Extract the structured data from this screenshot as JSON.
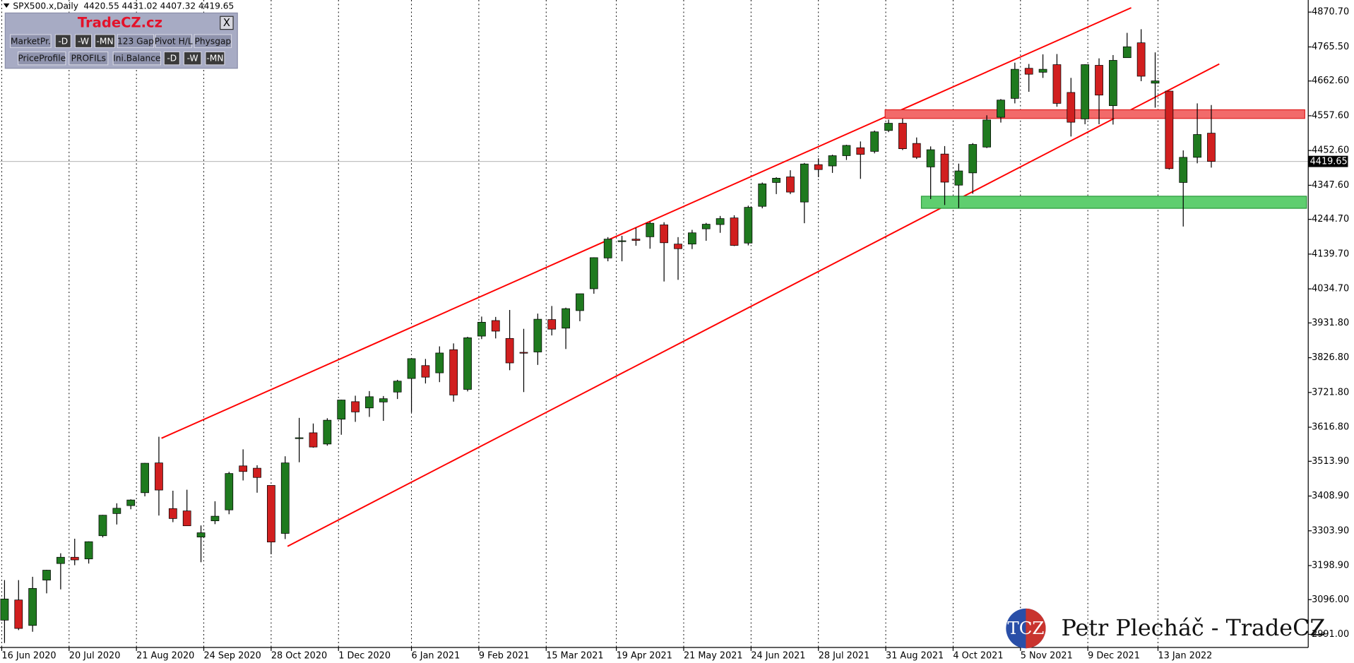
{
  "chart_data": {
    "type": "candlestick",
    "title": "SPX500.x,Daily",
    "header_values": [
      4420.55,
      4431.02,
      4407.32,
      4419.65
    ],
    "last_price": 4419.65,
    "up_color": "#1f7a1f",
    "down_color": "#d11f1f",
    "wick_color": "#000000",
    "x": [
      "15 Jun 2020",
      "22 Jun 2020",
      "29 Jun 2020",
      "6 Jul 2020",
      "13 Jul 2020",
      "20 Jul 2020",
      "27 Jul 2020",
      "3 Aug 2020",
      "10 Aug 2020",
      "17 Aug 2020",
      "24 Aug 2020",
      "31 Aug 2020",
      "7 Sep 2020",
      "14 Sep 2020",
      "21 Sep 2020",
      "28 Sep 2020",
      "5 Oct 2020",
      "12 Oct 2020",
      "19 Oct 2020",
      "26 Oct 2020",
      "2 Nov 2020",
      "9 Nov 2020",
      "16 Nov 2020",
      "23 Nov 2020",
      "30 Nov 2020",
      "7 Dec 2020",
      "14 Dec 2020",
      "21 Dec 2020",
      "28 Dec 2020",
      "4 Jan 2021",
      "11 Jan 2021",
      "18 Jan 2021",
      "25 Jan 2021",
      "1 Feb 2021",
      "8 Feb 2021",
      "15 Feb 2021",
      "22 Feb 2021",
      "1 Mar 2021",
      "8 Mar 2021",
      "15 Mar 2021",
      "22 Mar 2021",
      "29 Mar 2021",
      "5 Apr 2021",
      "12 Apr 2021",
      "19 Apr 2021",
      "26 Apr 2021",
      "3 May 2021",
      "10 May 2021",
      "17 May 2021",
      "24 May 2021",
      "31 May 2021",
      "7 Jun 2021",
      "14 Jun 2021",
      "21 Jun 2021",
      "28 Jun 2021",
      "5 Jul 2021",
      "12 Jul 2021",
      "19 Jul 2021",
      "26 Jul 2021",
      "2 Aug 2021",
      "9 Aug 2021",
      "16 Aug 2021",
      "23 Aug 2021",
      "30 Aug 2021",
      "6 Sep 2021",
      "13 Sep 2021",
      "20 Sep 2021",
      "27 Sep 2021",
      "4 Oct 2021",
      "11 Oct 2021",
      "18 Oct 2021",
      "25 Oct 2021",
      "1 Nov 2021",
      "8 Nov 2021",
      "15 Nov 2021",
      "22 Nov 2021",
      "29 Nov 2021",
      "6 Dec 2021",
      "13 Dec 2021",
      "20 Dec 2021",
      "27 Dec 2021",
      "3 Jan 2022",
      "10 Jan 2022",
      "17 Jan 2022",
      "24 Jan 2022",
      "31 Jan 2022",
      "7 Feb 2022"
    ],
    "open": [
      3034,
      3095,
      3018,
      3155,
      3205,
      3224,
      3219,
      3289,
      3356,
      3380,
      3419,
      3509,
      3371,
      3364,
      3285,
      3334,
      3367,
      3500,
      3493,
      3441,
      3296,
      3583,
      3600,
      3566,
      3641,
      3694,
      3675,
      3693,
      3723,
      3764,
      3803,
      3781,
      3851,
      3731,
      3892,
      3939,
      3885,
      3843,
      3844,
      3942,
      3916,
      3969,
      4035,
      4128,
      4180,
      4185,
      4192,
      4228,
      4170,
      4170,
      4216,
      4229,
      4249,
      4173,
      4284,
      4356,
      4373,
      4297,
      4410,
      4406,
      4437,
      4461,
      4450,
      4513,
      4535,
      4474,
      4403,
      4442,
      4348,
      4385,
      4463,
      4553,
      4610,
      4701,
      4689,
      4712,
      4628,
      4548,
      4710,
      4588,
      4733,
      4778,
      4656,
      4632,
      4356,
      4432,
      4505
    ],
    "high": [
      3155,
      3155,
      3165,
      3186,
      3236,
      3280,
      3272,
      3352,
      3387,
      3399,
      3509,
      3588,
      3425,
      3428,
      3320,
      3393,
      3482,
      3550,
      3502,
      3441,
      3529,
      3645,
      3628,
      3644,
      3700,
      3712,
      3726,
      3711,
      3760,
      3826,
      3823,
      3861,
      3870,
      3890,
      3951,
      3950,
      3971,
      3914,
      3960,
      3983,
      3978,
      4020,
      4130,
      4191,
      4195,
      4219,
      4238,
      4236,
      4191,
      4213,
      4234,
      4255,
      4257,
      4286,
      4356,
      4372,
      4393,
      4415,
      4429,
      4440,
      4470,
      4480,
      4513,
      4546,
      4549,
      4492,
      4465,
      4466,
      4413,
      4475,
      4559,
      4608,
      4718,
      4714,
      4743,
      4744,
      4672,
      4713,
      4731,
      4741,
      4808,
      4819,
      4749,
      4632,
      4453,
      4595,
      4590
    ],
    "low": [
      2965,
      3004,
      2999,
      3115,
      3127,
      3200,
      3205,
      3284,
      3323,
      3369,
      3408,
      3350,
      3330,
      3320,
      3209,
      3324,
      3354,
      3456,
      3419,
      3233,
      3279,
      3511,
      3555,
      3561,
      3594,
      3633,
      3648,
      3636,
      3702,
      3662,
      3749,
      3753,
      3694,
      3725,
      3883,
      3885,
      3789,
      3723,
      3805,
      3894,
      3853,
      3937,
      4020,
      4118,
      4118,
      4165,
      4156,
      4057,
      4062,
      4155,
      4180,
      4204,
      4164,
      4166,
      4278,
      4321,
      4321,
      4233,
      4372,
      4385,
      4424,
      4367,
      4444,
      4508,
      4454,
      4427,
      4306,
      4288,
      4279,
      4322,
      4460,
      4537,
      4595,
      4630,
      4672,
      4585,
      4495,
      4532,
      4532,
      4531,
      4733,
      4662,
      4582,
      4395,
      4223,
      4414,
      4401
    ],
    "close": [
      3098,
      3009,
      3130,
      3185,
      3224,
      3216,
      3271,
      3351,
      3372,
      3397,
      3508,
      3427,
      3341,
      3319,
      3298,
      3348,
      3477,
      3483,
      3465,
      3270,
      3509,
      3585,
      3557,
      3638,
      3699,
      3663,
      3709,
      3703,
      3756,
      3824,
      3768,
      3841,
      3714,
      3887,
      3934,
      3907,
      3811,
      3842,
      3943,
      3913,
      3975,
      4020,
      4129,
      4185,
      4180,
      4181,
      4233,
      4174,
      4156,
      4204,
      4230,
      4247,
      4166,
      4281,
      4352,
      4369,
      4327,
      4412,
      4395,
      4437,
      4468,
      4441,
      4509,
      4535,
      4458,
      4432,
      4455,
      4357,
      4391,
      4471,
      4545,
      4605,
      4698,
      4683,
      4698,
      4595,
      4538,
      4712,
      4620,
      4725,
      4766,
      4677,
      4663,
      4398,
      4432,
      4501,
      4419.65
    ],
    "xticks": [
      "16 Jun 2020",
      "20 Jul 2020",
      "21 Aug 2020",
      "24 Sep 2020",
      "28 Oct 2020",
      "1 Dec 2020",
      "6 Jan 2021",
      "9 Feb 2021",
      "15 Mar 2021",
      "19 Apr 2021",
      "21 May 2021",
      "24 Jun 2021",
      "28 Jul 2021",
      "31 Aug 2021",
      "4 Oct 2021",
      "5 Nov 2021",
      "9 Dec 2021",
      "13 Jan 2022"
    ],
    "ylim": [
      2951.6,
      4907.25
    ],
    "yticks": [
      {
        "value": 4870.7,
        "label": "4870.70"
      },
      {
        "value": 4765.5,
        "label": "4765.50"
      },
      {
        "value": 4662.6,
        "label": "4662.60"
      },
      {
        "value": 4557.6,
        "label": "4557.60"
      },
      {
        "value": 4452.6,
        "label": "4452.60"
      },
      {
        "value": 4347.6,
        "label": "4347.60"
      },
      {
        "value": 4244.7,
        "label": "4244.70"
      },
      {
        "value": 4139.7,
        "label": "4139.70"
      },
      {
        "value": 4034.7,
        "label": "4034.70"
      },
      {
        "value": 3931.8,
        "label": "3931.80"
      },
      {
        "value": 3826.8,
        "label": "3826.80"
      },
      {
        "value": 3721.8,
        "label": "3721.80"
      },
      {
        "value": 3616.8,
        "label": "3616.80"
      },
      {
        "value": 3513.9,
        "label": "3513.90"
      },
      {
        "value": 3408.9,
        "label": "3408.90"
      },
      {
        "value": 3303.9,
        "label": "3303.90"
      },
      {
        "value": 3198.9,
        "label": "3198.90"
      },
      {
        "value": 3096,
        "label": "3096.00"
      },
      {
        "value": 2991,
        "label": "2991.00"
      }
    ],
    "grid": true
  },
  "panel": {
    "title": "TradeCZ.cz",
    "close": "X",
    "row1": [
      "MarketPr.",
      "-D",
      "-W",
      "-MN",
      "123 Gap",
      "Pivot H/L",
      "Physgap"
    ],
    "row2": [
      "PriceProfile",
      "PROFILs",
      "Ini.Balance",
      "-D",
      "-W",
      "-MN"
    ]
  },
  "logo": "TCZ",
  "watermark": "Petr Plecháč - TradeCZ"
}
